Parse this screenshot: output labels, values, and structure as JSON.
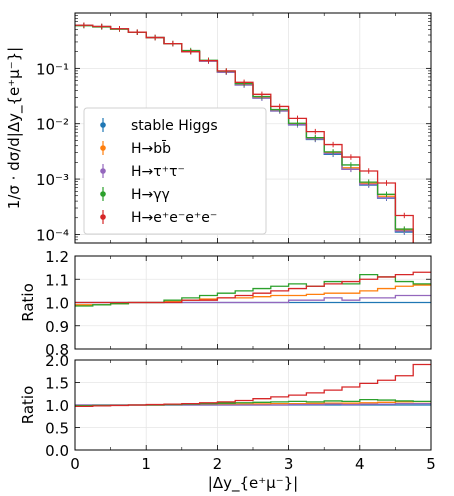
{
  "chart_data": [
    {
      "type": "line",
      "panel": "main",
      "ylabel": "1/σ · dσ/d|Δy_{e⁺μ⁻}|",
      "yscale": "log",
      "ylim": [
        7e-05,
        1.0
      ],
      "xlim": [
        0,
        5
      ],
      "grid": true,
      "legend_position": "lower-left",
      "y_ticks": [
        "10⁻⁴",
        "10⁻³",
        "10⁻²",
        "10⁻¹"
      ],
      "bin_edges": [
        0,
        0.25,
        0.5,
        0.75,
        1.0,
        1.25,
        1.5,
        1.75,
        2.0,
        2.25,
        2.5,
        2.75,
        3.0,
        3.25,
        3.5,
        3.75,
        4.0,
        4.25,
        4.5,
        4.75,
        5.0
      ],
      "series": [
        {
          "name": "stable Higgs",
          "color": "#1f77b4",
          "values": [
            0.6,
            0.57,
            0.52,
            0.45,
            0.36,
            0.28,
            0.2,
            0.135,
            0.085,
            0.05,
            0.029,
            0.017,
            0.0095,
            0.0052,
            0.0028,
            0.0015,
            0.00078,
            0.00045,
            0.00011,
            0.0
          ]
        },
        {
          "name": "H→bb̄",
          "color": "#ff7f0e",
          "values": [
            0.6,
            0.57,
            0.52,
            0.45,
            0.36,
            0.28,
            0.2,
            0.136,
            0.086,
            0.051,
            0.03,
            0.0175,
            0.0098,
            0.0054,
            0.003,
            0.0016,
            0.00084,
            0.00049,
            0.00012,
            0.0
          ]
        },
        {
          "name": "H→τ⁺τ⁻",
          "color": "#9467bd",
          "values": [
            0.6,
            0.57,
            0.52,
            0.45,
            0.36,
            0.28,
            0.2,
            0.135,
            0.085,
            0.05,
            0.029,
            0.017,
            0.0096,
            0.0053,
            0.0029,
            0.0015,
            0.0008,
            0.00046,
            0.000115,
            0.0
          ]
        },
        {
          "name": "H→γγ",
          "color": "#2ca02c",
          "values": [
            0.59,
            0.56,
            0.51,
            0.45,
            0.36,
            0.28,
            0.21,
            0.14,
            0.089,
            0.053,
            0.031,
            0.018,
            0.0102,
            0.0056,
            0.0031,
            0.0018,
            0.00088,
            0.00053,
            0.000125,
            0.0
          ]
        },
        {
          "name": "H→e⁺e⁻e⁺e⁻",
          "color": "#d62728",
          "values": [
            0.6,
            0.57,
            0.52,
            0.45,
            0.36,
            0.28,
            0.2,
            0.138,
            0.09,
            0.056,
            0.034,
            0.0205,
            0.0125,
            0.0072,
            0.0042,
            0.0025,
            0.0014,
            0.00085,
            0.00022,
            0.0
          ]
        }
      ]
    },
    {
      "type": "line",
      "panel": "ratio-1",
      "ylabel": "Ratio",
      "ylim": [
        0.8,
        1.2
      ],
      "xlim": [
        0,
        5
      ],
      "grid": true,
      "y_ticks": [
        "0.8",
        "0.9",
        "1.0",
        "1.1",
        "1.2"
      ],
      "bin_edges": [
        0,
        0.25,
        0.5,
        0.75,
        1.0,
        1.25,
        1.5,
        1.75,
        2.0,
        2.25,
        2.5,
        2.75,
        3.0,
        3.25,
        3.5,
        3.75,
        4.0,
        4.25,
        4.5,
        4.75,
        5.0
      ],
      "series": [
        {
          "name": "stable Higgs",
          "color": "#1f77b4",
          "values": [
            1.0,
            1.0,
            1.0,
            1.0,
            1.0,
            1.0,
            1.0,
            1.0,
            1.0,
            1.0,
            1.0,
            1.0,
            1.0,
            1.0,
            1.0,
            1.0,
            1.0,
            1.0,
            1.0,
            1.0
          ]
        },
        {
          "name": "H→bb̄",
          "color": "#ff7f0e",
          "values": [
            0.99,
            0.99,
            0.995,
            1.0,
            1.0,
            1.005,
            1.01,
            1.015,
            1.02,
            1.02,
            1.025,
            1.03,
            1.03,
            1.035,
            1.04,
            1.04,
            1.05,
            1.06,
            1.07,
            1.075
          ]
        },
        {
          "name": "H→τ⁺τ⁻",
          "color": "#9467bd",
          "values": [
            1.0,
            1.0,
            1.0,
            1.0,
            1.0,
            1.0,
            1.0,
            1.0,
            1.0,
            1.0,
            1.0,
            1.0,
            1.01,
            1.01,
            1.02,
            1.01,
            1.02,
            1.02,
            1.03,
            1.03
          ]
        },
        {
          "name": "H→γγ",
          "color": "#2ca02c",
          "values": [
            0.985,
            0.99,
            0.995,
            1.0,
            1.0,
            1.01,
            1.02,
            1.03,
            1.04,
            1.05,
            1.06,
            1.07,
            1.08,
            1.07,
            1.09,
            1.08,
            1.12,
            1.11,
            1.09,
            1.08
          ]
        },
        {
          "name": "H→e⁺e⁻e⁺e⁻",
          "color": "#d62728",
          "values": [
            1.0,
            1.0,
            1.0,
            1.0,
            1.0,
            1.0,
            1.01,
            1.01,
            1.02,
            1.03,
            1.04,
            1.05,
            1.06,
            1.07,
            1.08,
            1.09,
            1.1,
            1.11,
            1.12,
            1.13
          ],
          "offscale": true
        }
      ]
    },
    {
      "type": "line",
      "panel": "ratio-2",
      "xlabel": "|Δy_{e⁺μ⁻}|",
      "ylabel": "Ratio",
      "ylim": [
        0.0,
        2.0
      ],
      "xlim": [
        0,
        5
      ],
      "grid": true,
      "y_ticks": [
        "0.0",
        "0.5",
        "1.0",
        "1.5",
        "2.0"
      ],
      "x_ticks": [
        "0",
        "1",
        "2",
        "3",
        "4",
        "5"
      ],
      "bin_edges": [
        0,
        0.25,
        0.5,
        0.75,
        1.0,
        1.25,
        1.5,
        1.75,
        2.0,
        2.25,
        2.5,
        2.75,
        3.0,
        3.25,
        3.5,
        3.75,
        4.0,
        4.25,
        4.5,
        4.75,
        5.0
      ],
      "series": [
        {
          "name": "stable Higgs",
          "color": "#1f77b4",
          "values": [
            1.0,
            1.0,
            1.0,
            1.0,
            1.0,
            1.0,
            1.0,
            1.0,
            1.0,
            1.0,
            1.0,
            1.0,
            1.0,
            1.0,
            1.0,
            1.0,
            1.0,
            1.0,
            1.0,
            1.0
          ]
        },
        {
          "name": "H→bb̄",
          "color": "#ff7f0e",
          "values": [
            0.99,
            0.99,
            0.995,
            1.0,
            1.0,
            1.005,
            1.01,
            1.015,
            1.02,
            1.02,
            1.025,
            1.03,
            1.03,
            1.035,
            1.04,
            1.04,
            1.05,
            1.06,
            1.07,
            1.075
          ]
        },
        {
          "name": "H→τ⁺τ⁻",
          "color": "#9467bd",
          "values": [
            1.0,
            1.0,
            1.0,
            1.0,
            1.0,
            1.0,
            1.0,
            1.0,
            1.0,
            1.0,
            1.0,
            1.0,
            1.01,
            1.01,
            1.02,
            1.01,
            1.02,
            1.02,
            1.03,
            1.03
          ]
        },
        {
          "name": "H→γγ",
          "color": "#2ca02c",
          "values": [
            0.985,
            0.99,
            0.995,
            1.0,
            1.0,
            1.01,
            1.02,
            1.03,
            1.04,
            1.05,
            1.06,
            1.07,
            1.08,
            1.07,
            1.09,
            1.08,
            1.12,
            1.11,
            1.09,
            1.08
          ]
        },
        {
          "name": "H→e⁺e⁻e⁺e⁻",
          "color": "#d62728",
          "values": [
            0.97,
            0.98,
            0.99,
            1.0,
            1.01,
            1.02,
            1.03,
            1.05,
            1.07,
            1.1,
            1.14,
            1.18,
            1.22,
            1.27,
            1.33,
            1.4,
            1.48,
            1.55,
            1.65,
            1.9
          ]
        }
      ]
    }
  ]
}
